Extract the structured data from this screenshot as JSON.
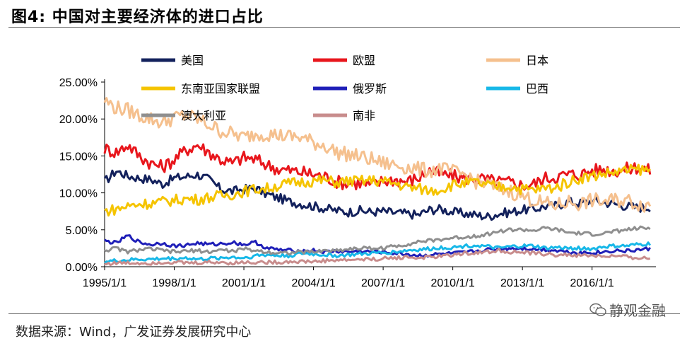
{
  "figure": {
    "title": "图4:   中国对主要经济体的进口占比",
    "source": "数据来源：Wind，广发证券发展研究中心",
    "watermark": "静观金融"
  },
  "chart_data": {
    "type": "line",
    "title": "中国对主要经济体的进口占比",
    "xlabel": "",
    "ylabel": "",
    "ylim": [
      0,
      25
    ],
    "xlim": [
      1995.0,
      2018.75
    ],
    "y_ticks": [
      "0.00%",
      "5.00%",
      "10.00%",
      "15.00%",
      "20.00%",
      "25.00%"
    ],
    "y_tick_values": [
      0,
      5,
      10,
      15,
      20,
      25
    ],
    "x_ticks": [
      "1995/1/1",
      "1998/1/1",
      "2001/1/1",
      "2004/1/1",
      "2007/1/1",
      "2010/1/1",
      "2013/1/1",
      "2016/1/1"
    ],
    "x_tick_values": [
      1995,
      1998,
      2001,
      2004,
      2007,
      2010,
      2013,
      2016
    ],
    "legend_position": "top",
    "x": [
      1995.0,
      1995.5,
      1996.0,
      1996.5,
      1997.0,
      1997.5,
      1998.0,
      1998.5,
      1999.0,
      1999.5,
      2000.0,
      2000.5,
      2001.0,
      2001.5,
      2002.0,
      2002.5,
      2003.0,
      2003.5,
      2004.0,
      2004.5,
      2005.0,
      2005.5,
      2006.0,
      2006.5,
      2007.0,
      2007.5,
      2008.0,
      2008.5,
      2009.0,
      2009.5,
      2010.0,
      2010.5,
      2011.0,
      2011.5,
      2012.0,
      2012.5,
      2013.0,
      2013.5,
      2014.0,
      2014.5,
      2015.0,
      2015.5,
      2016.0,
      2016.5,
      2017.0,
      2017.5,
      2018.0,
      2018.5
    ],
    "series": [
      {
        "name": "美国",
        "color": "#13215c",
        "values": [
          11.5,
          13.0,
          12.3,
          12.0,
          11.8,
          11.2,
          12.0,
          12.2,
          12.5,
          11.8,
          10.5,
          10.2,
          10.5,
          10.6,
          9.8,
          9.3,
          8.8,
          8.5,
          8.2,
          7.9,
          7.6,
          7.4,
          7.6,
          7.4,
          7.5,
          7.3,
          7.2,
          7.0,
          7.7,
          7.8,
          7.4,
          7.2,
          7.0,
          6.8,
          7.2,
          7.4,
          7.7,
          7.8,
          8.2,
          8.3,
          8.8,
          8.6,
          8.9,
          8.7,
          8.5,
          8.2,
          8.0,
          8.1
        ]
      },
      {
        "name": "欧盟",
        "color": "#e8161c",
        "values": [
          16.0,
          15.5,
          16.5,
          15.0,
          14.0,
          13.5,
          14.5,
          15.8,
          16.5,
          15.5,
          14.5,
          14.0,
          14.8,
          14.5,
          13.8,
          13.2,
          13.0,
          12.8,
          12.5,
          12.2,
          11.5,
          11.3,
          11.3,
          11.0,
          11.6,
          11.8,
          11.5,
          12.0,
          13.0,
          12.5,
          12.3,
          12.0,
          12.0,
          11.7,
          11.5,
          11.4,
          11.0,
          11.2,
          12.0,
          12.2,
          12.5,
          12.5,
          13.0,
          13.2,
          13.0,
          13.2,
          13.5,
          13.0
        ]
      },
      {
        "name": "日本",
        "color": "#f5c08e",
        "values": [
          22.5,
          21.5,
          21.2,
          20.5,
          20.0,
          19.5,
          20.2,
          20.5,
          20.0,
          19.2,
          18.4,
          18.0,
          17.5,
          18.0,
          18.0,
          17.8,
          17.6,
          17.5,
          16.8,
          16.4,
          15.5,
          15.2,
          14.9,
          14.5,
          14.0,
          13.8,
          13.5,
          13.2,
          13.0,
          13.3,
          12.8,
          12.5,
          11.5,
          11.2,
          10.5,
          10.2,
          9.5,
          9.0,
          8.5,
          8.3,
          8.8,
          8.5,
          9.0,
          8.8,
          9.0,
          9.0,
          8.5,
          8.3
        ]
      },
      {
        "name": "东南亚国家联盟",
        "color": "#f5c400",
        "values": [
          7.5,
          7.8,
          8.2,
          8.5,
          8.6,
          8.8,
          9.0,
          9.2,
          9.1,
          9.4,
          9.6,
          9.8,
          10.2,
          10.5,
          10.6,
          11.0,
          11.3,
          11.5,
          11.6,
          11.7,
          11.4,
          11.6,
          11.6,
          11.7,
          11.5,
          11.3,
          10.8,
          10.6,
          10.3,
          10.5,
          11.1,
          11.3,
          11.4,
          11.0,
          10.8,
          10.9,
          10.5,
          10.4,
          10.6,
          10.8,
          11.5,
          12.0,
          12.3,
          12.6,
          12.8,
          13.0,
          13.2,
          13.0
        ]
      },
      {
        "name": "俄罗斯",
        "color": "#1f1fb8",
        "values": [
          3.5,
          3.2,
          4.2,
          3.3,
          3.0,
          3.2,
          2.8,
          2.9,
          3.2,
          3.0,
          3.1,
          3.3,
          3.0,
          3.3,
          2.5,
          2.3,
          2.2,
          2.1,
          2.2,
          2.0,
          2.1,
          2.0,
          2.1,
          2.0,
          2.0,
          1.8,
          1.7,
          1.5,
          1.6,
          1.7,
          1.8,
          1.9,
          2.1,
          2.3,
          2.4,
          2.5,
          2.5,
          2.4,
          2.3,
          2.2,
          2.0,
          1.9,
          1.9,
          2.0,
          2.2,
          2.1,
          2.3,
          2.4
        ]
      },
      {
        "name": "巴西",
        "color": "#17b8e8",
        "values": [
          0.7,
          0.8,
          0.9,
          1.0,
          1.0,
          1.1,
          1.1,
          1.2,
          1.0,
          1.1,
          1.2,
          1.3,
          1.2,
          1.5,
          1.6,
          1.5,
          1.5,
          1.8,
          1.7,
          1.6,
          1.5,
          1.6,
          1.7,
          1.8,
          1.9,
          2.0,
          2.2,
          2.3,
          2.4,
          2.6,
          2.6,
          2.8,
          2.9,
          2.7,
          2.5,
          2.7,
          2.8,
          2.8,
          2.5,
          2.6,
          2.5,
          2.5,
          2.4,
          2.7,
          2.8,
          2.8,
          3.0,
          3.1
        ]
      },
      {
        "name": "澳大利亚",
        "color": "#8f8f8f",
        "values": [
          2.2,
          2.5,
          2.0,
          2.3,
          2.4,
          2.2,
          2.0,
          2.1,
          2.2,
          2.0,
          2.3,
          2.1,
          2.4,
          2.2,
          2.0,
          1.9,
          1.9,
          2.0,
          2.0,
          2.2,
          2.2,
          2.4,
          2.5,
          2.5,
          2.5,
          2.8,
          3.0,
          3.4,
          3.5,
          3.7,
          3.9,
          4.0,
          4.2,
          4.4,
          4.8,
          5.0,
          5.0,
          4.9,
          5.2,
          5.0,
          4.6,
          4.5,
          4.4,
          4.5,
          4.8,
          5.0,
          5.2,
          5.2
        ]
      },
      {
        "name": "南非",
        "color": "#c88c8c",
        "values": [
          0.4,
          0.5,
          0.5,
          0.5,
          0.5,
          0.6,
          0.6,
          0.5,
          0.5,
          0.6,
          0.6,
          0.5,
          0.6,
          0.6,
          0.6,
          0.6,
          0.7,
          0.7,
          0.7,
          0.8,
          0.9,
          0.9,
          1.0,
          1.0,
          1.1,
          1.2,
          1.3,
          1.2,
          1.3,
          1.4,
          1.6,
          1.8,
          1.9,
          2.0,
          2.2,
          2.0,
          1.9,
          1.8,
          1.7,
          1.6,
          1.6,
          1.5,
          1.5,
          1.4,
          1.4,
          1.3,
          1.2,
          1.1
        ]
      }
    ]
  }
}
